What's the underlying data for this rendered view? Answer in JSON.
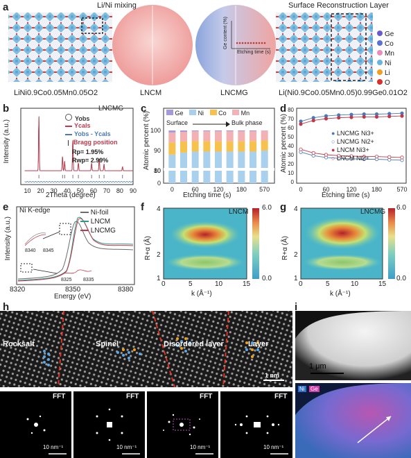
{
  "panel_labels": {
    "a": "a",
    "b": "b",
    "c": "c",
    "d": "d",
    "e": "e",
    "f": "f",
    "g": "g",
    "h": "h",
    "i": "i"
  },
  "panel_a": {
    "mixing_label": "Li/Ni mixing",
    "surface_label": "Surface Reconstruction Layer",
    "inset_y": "Ge content (%)",
    "inset_x": "Etching time (s)",
    "captions": [
      "LiNi0.9Co0.05Mn0.05O2",
      "LNCM",
      "LNCMG",
      "Li(Ni0.9Co0.05Mn0.05)0.99Ge0.01O2"
    ],
    "legend": [
      {
        "label": "Ge",
        "color": "#6a5acd"
      },
      {
        "label": "Co",
        "color": "#5b6fd8"
      },
      {
        "label": "Mn",
        "color": "#e98fb7"
      },
      {
        "label": "Ni",
        "color": "#68b6e0"
      },
      {
        "label": "Li",
        "color": "#f0a020"
      },
      {
        "label": "O",
        "color": "#d8302a"
      }
    ]
  },
  "panel_b": {
    "title": "LNCMG",
    "xlabel": "2Theta (degree)",
    "ylabel": "Intensity (a.u.)",
    "legend": [
      "Yobs",
      "Ycals",
      "Yobs - Ycals",
      "Bragg position"
    ],
    "rp": "Rp= 1.95%",
    "rwp": "Rwp= 2.99%",
    "xticks": [
      "10",
      "20",
      "30",
      "40",
      "50",
      "60",
      "70",
      "80",
      "90"
    ]
  },
  "panel_c": {
    "ylabel": "Atomic percent (%)",
    "xlabel": "Etching time (s)",
    "legend": [
      "Ge",
      "Ni",
      "Co",
      "Mn"
    ],
    "arrow_left": "Surface",
    "arrow_right": "Bulk phase",
    "xticks": [
      "0",
      "60",
      "120",
      "180",
      "570"
    ],
    "yticks": [
      "0",
      "10",
      "80",
      "90",
      "100"
    ]
  },
  "panel_d": {
    "ylabel": "Atomic percent (%)",
    "xlabel": "Etching time (s)",
    "legend": [
      "LNCMG Ni3+",
      "LNCMG Ni2+",
      "LNCM  Ni3+",
      "LNCM  Ni2+"
    ],
    "xticks": [
      "0",
      "60",
      "120",
      "180",
      "570"
    ],
    "yticks": [
      "0",
      "10",
      "20",
      "30",
      "40",
      "50",
      "60",
      "70",
      "80"
    ]
  },
  "panel_e": {
    "title": "Ni K-edge",
    "xlabel": "Energy (eV)",
    "ylabel": "Intensity (a.u.)",
    "legend": [
      "Ni-foil",
      "LNCM",
      "LNCMG"
    ],
    "xticks": [
      "8320",
      "8350",
      "8380"
    ],
    "inset1_ticks": [
      "8340",
      "8345"
    ],
    "inset2_ticks": [
      "8325",
      "8335"
    ]
  },
  "panel_f": {
    "title": "LNCM",
    "xlabel": "k (Å⁻¹)",
    "ylabel": "R+α (Å)",
    "cbar_max": "6.0",
    "cbar_min": "0.0",
    "xticks": [
      "0",
      "5",
      "10",
      "15"
    ],
    "yticks": [
      "1",
      "2",
      "3",
      "4"
    ]
  },
  "panel_g": {
    "title": "LNCMG",
    "xlabel": "k (Å⁻¹)",
    "ylabel": "R+α (Å)",
    "cbar_max": "6.0",
    "cbar_min": "0.0",
    "xticks": [
      "0",
      "5",
      "10",
      "15"
    ],
    "yticks": [
      "1",
      "2",
      "3",
      "4"
    ]
  },
  "panel_h": {
    "regions": [
      "Rocksalt",
      "Spinel",
      "Disordered layer",
      "Layer"
    ],
    "scale": "1 nm",
    "fft_label": "FFT",
    "fft_scale": "10 nm⁻¹"
  },
  "panel_i": {
    "scale": "1 μm",
    "map_ni": "Ni",
    "map_ge": "Ge"
  },
  "chart_data": [
    {
      "type": "bar",
      "title": "",
      "xlabel": "Etching time (s)",
      "ylabel": "Atomic percent (%)",
      "categories": [
        "0",
        "30",
        "60",
        "90",
        "120",
        "150",
        "180",
        "210",
        "570"
      ],
      "series": [
        {
          "name": "Ni",
          "values": [
            88,
            89,
            89.5,
            89.5,
            89.5,
            89.5,
            89.5,
            89.5,
            90
          ]
        },
        {
          "name": "Co",
          "values": [
            6,
            5.5,
            5.3,
            5.2,
            5.2,
            5.2,
            5.2,
            5.2,
            5
          ]
        },
        {
          "name": "Mn",
          "values": [
            5,
            4.8,
            4.8,
            4.9,
            4.9,
            4.9,
            4.9,
            4.9,
            4.9
          ]
        },
        {
          "name": "Ge",
          "values": [
            1,
            0.7,
            0.4,
            0.4,
            0.4,
            0.4,
            0.4,
            0.4,
            0.1
          ]
        }
      ],
      "ylim": [
        0,
        100
      ]
    },
    {
      "type": "line",
      "xlabel": "Etching time (s)",
      "ylabel": "Atomic percent (%)",
      "x": [
        0,
        30,
        60,
        90,
        120,
        150,
        180,
        210,
        570
      ],
      "series": [
        {
          "name": "LNCMG Ni3+",
          "values": [
            67,
            71,
            73,
            74,
            74.5,
            75,
            75,
            75.5,
            76
          ]
        },
        {
          "name": "LNCMG Ni2+",
          "values": [
            33,
            29,
            27,
            26,
            25.5,
            25,
            25,
            24.5,
            24
          ]
        },
        {
          "name": "LNCM  Ni3+",
          "values": [
            64,
            68,
            70,
            71,
            71.5,
            72,
            72,
            72.5,
            73
          ]
        },
        {
          "name": "LNCM  Ni2+",
          "values": [
            36,
            32,
            30,
            29,
            28.5,
            28,
            28,
            27.5,
            27
          ]
        }
      ],
      "ylim": [
        0,
        80
      ]
    }
  ]
}
